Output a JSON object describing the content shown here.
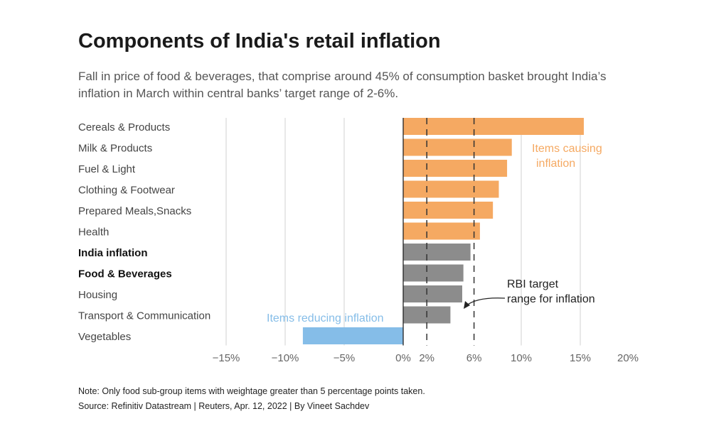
{
  "chart_data": {
    "type": "bar",
    "orientation": "horizontal",
    "title": "Components of India's retail inflation",
    "subtitle": "Fall in price of  food & beverages, that comprise around 45% of consumption basket brought India’s inflation in March within central banks’ target range of 2-6%.",
    "categories": [
      "Cereals & Products",
      "Milk & Products",
      "Fuel & Light",
      "Clothing & Footwear",
      "Prepared Meals,Snacks",
      "Health",
      "India inflation",
      "Food & Beverages",
      "Housing",
      "Transport & Communication",
      "Vegetables"
    ],
    "bold_categories": [
      "India inflation",
      "Food & Beverages"
    ],
    "values": [
      15.3,
      9.2,
      8.8,
      8.1,
      7.6,
      6.5,
      5.7,
      5.1,
      5.0,
      4.0,
      -8.5
    ],
    "bar_colors": [
      "#f5a962",
      "#f5a962",
      "#f5a962",
      "#f5a962",
      "#f5a962",
      "#f5a962",
      "#8c8c8c",
      "#8c8c8c",
      "#8c8c8c",
      "#8c8c8c",
      "#85bde8"
    ],
    "xlim": [
      -15,
      20
    ],
    "x_ticks": [
      -15,
      -10,
      -5,
      0,
      2,
      6,
      10,
      15,
      20
    ],
    "x_tick_labels": [
      "−15%",
      "−10%",
      "−5%",
      "0%",
      "2%",
      "6%",
      "10%",
      "15%",
      "20%"
    ],
    "gridlines": [
      -15,
      -10,
      -5,
      0,
      10,
      15
    ],
    "target_range": [
      2,
      6
    ],
    "annotations": {
      "causing": "Items causing inflation",
      "reducing": "Items reducing inflation",
      "rbi_line1": "RBI target",
      "rbi_line2": "range for inflation"
    },
    "colors": {
      "causing": "#f5a962",
      "neutral": "#8c8c8c",
      "reducing": "#85bde8"
    }
  },
  "footer": {
    "note": "Note: Only food sub-group items with weightage greater than 5 percentage points taken.",
    "source": "Source: Refinitiv Datastream | Reuters, Apr. 12, 2022 | By Vineet Sachdev"
  }
}
